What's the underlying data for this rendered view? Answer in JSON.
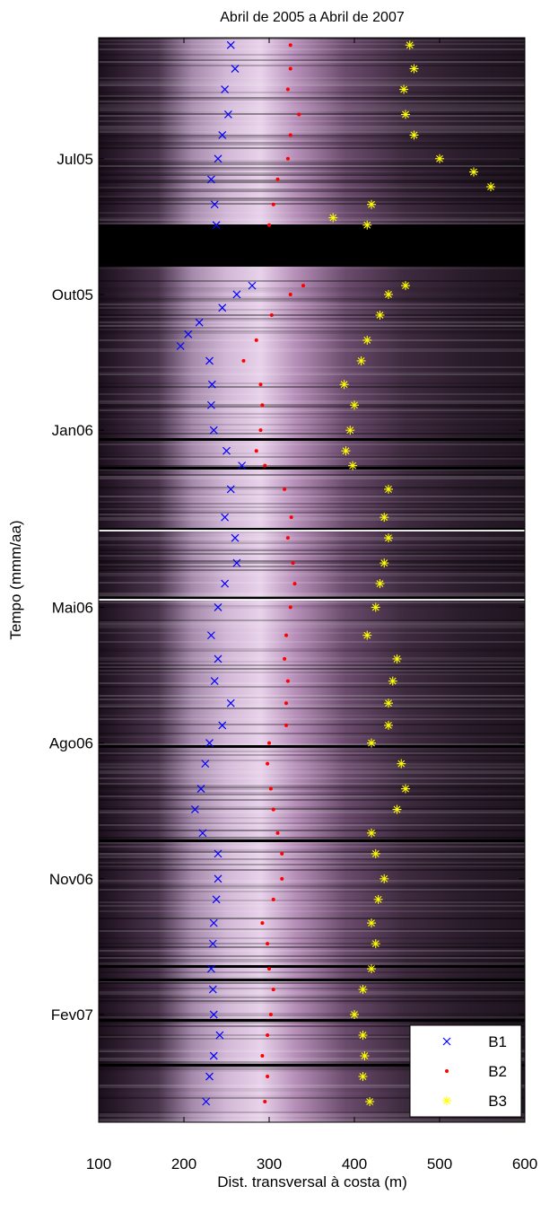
{
  "chart_data": {
    "type": "scatter",
    "title": "Abril de 2005 a Abril de 2007",
    "xlabel": "Dist. transversal à costa (m)",
    "ylabel": "Tempo (mmm/aa)",
    "xlim": [
      100,
      600
    ],
    "xticks": [
      100,
      200,
      300,
      400,
      500,
      600
    ],
    "ylim": [
      "2005-04-10",
      "2007-04-15"
    ],
    "yaxis": "date, increasing downward",
    "yticks": [
      {
        "date": "2005-07-01",
        "label": "Jul05"
      },
      {
        "date": "2005-10-01",
        "label": "Out05"
      },
      {
        "date": "2006-01-01",
        "label": "Jan06"
      },
      {
        "date": "2006-05-01",
        "label": "Mai06"
      },
      {
        "date": "2006-08-01",
        "label": "Ago06"
      },
      {
        "date": "2006-11-01",
        "label": "Nov06"
      },
      {
        "date": "2007-02-01",
        "label": "Fev07"
      }
    ],
    "background": "timestack image (purple-white intensity)",
    "legend_position": "bottom-right",
    "series": [
      {
        "name": "B1",
        "marker": "x",
        "color": "#0000ff",
        "points": [
          [
            "2005-04-15",
            255
          ],
          [
            "2005-05-01",
            260
          ],
          [
            "2005-05-15",
            248
          ],
          [
            "2005-06-01",
            252
          ],
          [
            "2005-06-15",
            245
          ],
          [
            "2005-07-01",
            240
          ],
          [
            "2005-07-15",
            232
          ],
          [
            "2005-08-01",
            236
          ],
          [
            "2005-08-15",
            238
          ],
          [
            "2005-09-25",
            280
          ],
          [
            "2005-10-01",
            262
          ],
          [
            "2005-10-10",
            245
          ],
          [
            "2005-10-20",
            218
          ],
          [
            "2005-10-28",
            205
          ],
          [
            "2005-11-05",
            196
          ],
          [
            "2005-11-15",
            230
          ],
          [
            "2005-12-01",
            233
          ],
          [
            "2005-12-15",
            232
          ],
          [
            "2006-01-01",
            235
          ],
          [
            "2006-01-15",
            250
          ],
          [
            "2006-01-25",
            268
          ],
          [
            "2006-02-10",
            255
          ],
          [
            "2006-03-01",
            248
          ],
          [
            "2006-03-15",
            260
          ],
          [
            "2006-04-01",
            262
          ],
          [
            "2006-04-15",
            248
          ],
          [
            "2006-05-01",
            240
          ],
          [
            "2006-05-20",
            232
          ],
          [
            "2006-06-05",
            240
          ],
          [
            "2006-06-20",
            236
          ],
          [
            "2006-07-05",
            255
          ],
          [
            "2006-07-20",
            245
          ],
          [
            "2006-08-01",
            230
          ],
          [
            "2006-08-15",
            225
          ],
          [
            "2006-09-01",
            220
          ],
          [
            "2006-09-15",
            213
          ],
          [
            "2006-10-01",
            222
          ],
          [
            "2006-10-15",
            240
          ],
          [
            "2006-11-01",
            240
          ],
          [
            "2006-11-15",
            238
          ],
          [
            "2006-12-01",
            235
          ],
          [
            "2006-12-15",
            234
          ],
          [
            "2007-01-01",
            232
          ],
          [
            "2007-01-15",
            234
          ],
          [
            "2007-02-01",
            235
          ],
          [
            "2007-02-15",
            242
          ],
          [
            "2007-03-01",
            235
          ],
          [
            "2007-03-15",
            230
          ],
          [
            "2007-04-01",
            226
          ]
        ]
      },
      {
        "name": "B2",
        "marker": "dot",
        "color": "#ff0000",
        "points": [
          [
            "2005-04-15",
            325
          ],
          [
            "2005-05-01",
            325
          ],
          [
            "2005-05-15",
            322
          ],
          [
            "2005-06-01",
            335
          ],
          [
            "2005-06-15",
            325
          ],
          [
            "2005-07-01",
            322
          ],
          [
            "2005-07-15",
            310
          ],
          [
            "2005-08-01",
            305
          ],
          [
            "2005-08-15",
            300
          ],
          [
            "2005-09-25",
            340
          ],
          [
            "2005-10-01",
            325
          ],
          [
            "2005-10-15",
            303
          ],
          [
            "2005-11-01",
            285
          ],
          [
            "2005-11-15",
            270
          ],
          [
            "2005-12-01",
            290
          ],
          [
            "2005-12-15",
            292
          ],
          [
            "2006-01-01",
            290
          ],
          [
            "2006-01-15",
            285
          ],
          [
            "2006-01-25",
            295
          ],
          [
            "2006-02-10",
            318
          ],
          [
            "2006-03-01",
            326
          ],
          [
            "2006-03-15",
            322
          ],
          [
            "2006-04-01",
            328
          ],
          [
            "2006-04-15",
            330
          ],
          [
            "2006-05-01",
            325
          ],
          [
            "2006-05-20",
            320
          ],
          [
            "2006-06-05",
            318
          ],
          [
            "2006-06-20",
            322
          ],
          [
            "2006-07-05",
            320
          ],
          [
            "2006-07-20",
            320
          ],
          [
            "2006-08-01",
            300
          ],
          [
            "2006-08-15",
            298
          ],
          [
            "2006-09-01",
            302
          ],
          [
            "2006-09-15",
            305
          ],
          [
            "2006-10-01",
            310
          ],
          [
            "2006-10-15",
            315
          ],
          [
            "2006-11-01",
            315
          ],
          [
            "2006-11-15",
            305
          ],
          [
            "2006-12-01",
            292
          ],
          [
            "2006-12-15",
            298
          ],
          [
            "2007-01-01",
            300
          ],
          [
            "2007-01-15",
            305
          ],
          [
            "2007-02-01",
            302
          ],
          [
            "2007-02-15",
            298
          ],
          [
            "2007-03-01",
            292
          ],
          [
            "2007-03-15",
            298
          ],
          [
            "2007-04-01",
            295
          ]
        ]
      },
      {
        "name": "B3",
        "marker": "star",
        "color": "#ffff00",
        "points": [
          [
            "2005-04-15",
            465
          ],
          [
            "2005-05-01",
            470
          ],
          [
            "2005-05-15",
            458
          ],
          [
            "2005-06-01",
            460
          ],
          [
            "2005-06-15",
            470
          ],
          [
            "2005-07-01",
            500
          ],
          [
            "2005-07-10",
            540
          ],
          [
            "2005-07-20",
            560
          ],
          [
            "2005-08-01",
            420
          ],
          [
            "2005-08-10",
            375
          ],
          [
            "2005-08-15",
            415
          ],
          [
            "2005-09-25",
            460
          ],
          [
            "2005-10-01",
            440
          ],
          [
            "2005-10-15",
            430
          ],
          [
            "2005-11-01",
            415
          ],
          [
            "2005-11-15",
            408
          ],
          [
            "2005-12-01",
            388
          ],
          [
            "2005-12-15",
            400
          ],
          [
            "2006-01-01",
            395
          ],
          [
            "2006-01-15",
            390
          ],
          [
            "2006-01-25",
            398
          ],
          [
            "2006-02-10",
            440
          ],
          [
            "2006-03-01",
            435
          ],
          [
            "2006-03-15",
            440
          ],
          [
            "2006-04-01",
            435
          ],
          [
            "2006-04-15",
            430
          ],
          [
            "2006-05-01",
            425
          ],
          [
            "2006-05-20",
            415
          ],
          [
            "2006-06-05",
            450
          ],
          [
            "2006-06-20",
            445
          ],
          [
            "2006-07-05",
            440
          ],
          [
            "2006-07-20",
            440
          ],
          [
            "2006-08-01",
            420
          ],
          [
            "2006-08-15",
            455
          ],
          [
            "2006-09-01",
            460
          ],
          [
            "2006-09-15",
            450
          ],
          [
            "2006-10-01",
            420
          ],
          [
            "2006-10-15",
            425
          ],
          [
            "2006-11-01",
            435
          ],
          [
            "2006-11-15",
            428
          ],
          [
            "2006-12-01",
            420
          ],
          [
            "2006-12-15",
            425
          ],
          [
            "2007-01-01",
            420
          ],
          [
            "2007-01-15",
            410
          ],
          [
            "2007-02-01",
            400
          ],
          [
            "2007-02-15",
            410
          ],
          [
            "2007-03-01",
            412
          ],
          [
            "2007-03-15",
            410
          ],
          [
            "2007-04-01",
            418
          ]
        ]
      }
    ]
  }
}
